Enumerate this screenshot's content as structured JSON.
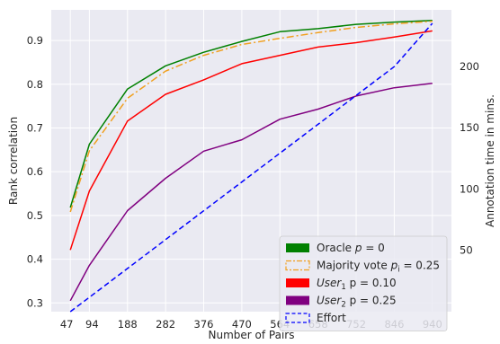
{
  "chart_data": {
    "type": "line",
    "xlabel": "Number of Pairs",
    "ylabel": "Rank correlation",
    "y2label": "Annotation time in mins.",
    "x": [
      47,
      94,
      188,
      282,
      376,
      470,
      564,
      658,
      752,
      846,
      940
    ],
    "x_tick_labels": [
      "47",
      "94",
      "188",
      "282",
      "376",
      "470",
      "564",
      "658",
      "752",
      "846",
      "940"
    ],
    "xlim": [
      0,
      987
    ],
    "ylim": [
      0.28,
      0.97
    ],
    "y_ticks": [
      0.3,
      0.4,
      0.5,
      0.6,
      0.7,
      0.8,
      0.9
    ],
    "y_tick_labels": [
      "0.3",
      "0.4",
      "0.5",
      "0.6",
      "0.7",
      "0.8",
      "0.9"
    ],
    "y2lim": [
      0,
      246
    ],
    "y2_ticks": [
      50,
      100,
      150,
      200
    ],
    "y2_tick_labels": [
      "50",
      "100",
      "150",
      "200"
    ],
    "grid": true,
    "legend_position": "lower-right",
    "series": [
      {
        "label_prefix": "Oracle ",
        "label_italic": "p",
        "label_sub": "",
        "label_suffix": " = 0",
        "color": "#008000",
        "dash": "solid",
        "axis": "left",
        "values": [
          0.518,
          0.663,
          0.789,
          0.842,
          0.873,
          0.898,
          0.92,
          0.927,
          0.937,
          0.942,
          0.946
        ]
      },
      {
        "label_prefix": "Majority vote ",
        "label_italic": "p",
        "label_sub": "i",
        "label_suffix": " = 0.25",
        "color": "#f0a020",
        "dash": "dashdot",
        "axis": "left",
        "values": [
          0.508,
          0.648,
          0.768,
          0.83,
          0.866,
          0.891,
          0.905,
          0.918,
          0.93,
          0.938,
          0.944
        ]
      },
      {
        "label_prefix": "",
        "label_italic": "User",
        "label_sub": "1",
        "label_suffix": " p = 0.10",
        "color": "#ff0000",
        "dash": "solid",
        "axis": "left",
        "values": [
          0.421,
          0.556,
          0.716,
          0.777,
          0.81,
          0.847,
          0.866,
          0.885,
          0.895,
          0.908,
          0.922
        ]
      },
      {
        "label_prefix": "",
        "label_italic": "User",
        "label_sub": "2",
        "label_suffix": " p = 0.25",
        "color": "#800080",
        "dash": "solid",
        "axis": "left",
        "values": [
          0.305,
          0.386,
          0.511,
          0.585,
          0.647,
          0.673,
          0.72,
          0.743,
          0.773,
          0.792,
          0.802
        ]
      },
      {
        "label_prefix": "Effort",
        "label_italic": "",
        "label_sub": "",
        "label_suffix": "",
        "color": "#0000ff",
        "dash": "dashed",
        "axis": "right",
        "values": [
          0,
          11.75,
          35.25,
          58.75,
          82.25,
          105.75,
          129.25,
          152.75,
          176.25,
          199.75,
          235
        ]
      }
    ]
  }
}
